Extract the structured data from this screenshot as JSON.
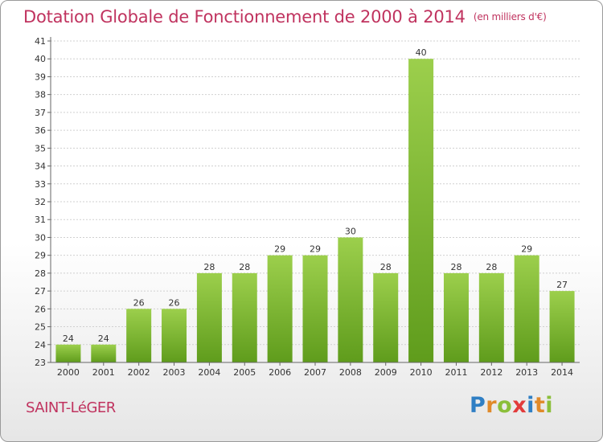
{
  "header": {
    "title": "Dotation Globale de Fonctionnement de 2000 à 2014",
    "unit": "(en milliers d'€)"
  },
  "commune": "SAINT-LéGER",
  "logo": {
    "text": "Proxiti",
    "colors": [
      "#2f7fc4",
      "#e08a2a",
      "#8bbf3a",
      "#e23b3b"
    ]
  },
  "colors": {
    "bar_light": "#9ccf4c",
    "bar_dark": "#5f9c1c",
    "title": "#c0335f",
    "grid": "#d0d0d0"
  },
  "chart_data": {
    "type": "bar",
    "categories": [
      "2000",
      "2001",
      "2002",
      "2003",
      "2004",
      "2005",
      "2006",
      "2007",
      "2008",
      "2009",
      "2010",
      "2011",
      "2012",
      "2013",
      "2014"
    ],
    "values": [
      24,
      24,
      26,
      26,
      28,
      28,
      29,
      29,
      30,
      28,
      40,
      28,
      28,
      29,
      27
    ],
    "ylim": [
      23,
      41
    ],
    "yticks": [
      23,
      24,
      25,
      26,
      27,
      28,
      29,
      30,
      31,
      32,
      33,
      34,
      35,
      36,
      37,
      38,
      39,
      40,
      41
    ],
    "grid": true,
    "data_labels": true
  }
}
